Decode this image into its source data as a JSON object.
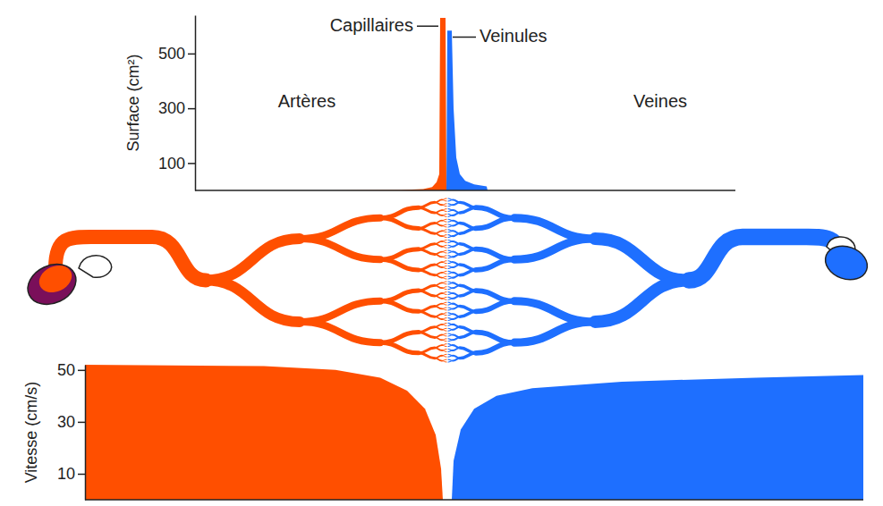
{
  "chart_data": [
    {
      "type": "area",
      "y_label": "Surface (cm²)",
      "xlim": [
        0,
        604
      ],
      "ylim": [
        0,
        640
      ],
      "yticks": [
        100,
        300,
        500
      ],
      "tick_labels": "y",
      "series": [
        {
          "color": "#ff4f00",
          "x": [
            0,
            150,
            230,
            255,
            265,
            270,
            273,
            274,
            280,
            281
          ],
          "values": [
            0,
            0,
            2,
            5,
            12,
            30,
            60,
            630,
            630,
            0
          ]
        },
        {
          "color": "#1e6fff",
          "x": [
            281,
            282,
            287,
            289,
            292,
            296,
            302,
            312,
            326,
            327
          ],
          "values": [
            0,
            584,
            584,
            300,
            120,
            60,
            35,
            22,
            15,
            0
          ]
        }
      ],
      "annotations": [
        {
          "text": "Artères",
          "x": 125,
          "y": 320
        },
        {
          "text": "Veines",
          "x": 520,
          "y": 320
        },
        {
          "text": "Capillaires",
          "x": 244,
          "y": 600,
          "target": {
            "x": 272,
            "y": 600
          }
        },
        {
          "text": "Veinules",
          "x": 318,
          "y": 560,
          "target": {
            "x": 288,
            "y": 560
          }
        }
      ]
    },
    {
      "type": "area",
      "y_label": "Vitesse (cm/s)",
      "xlim": [
        0,
        870
      ],
      "ylim": [
        0,
        52
      ],
      "yticks": [
        10,
        30,
        50
      ],
      "tick_labels": "y",
      "series": [
        {
          "color": "#ff4f00",
          "x": [
            0,
            200,
            280,
            330,
            360,
            380,
            392,
            398,
            400
          ],
          "values": [
            52,
            51.5,
            50,
            47,
            42,
            35,
            25,
            12,
            0
          ]
        },
        {
          "color": "#1e6fff",
          "x": [
            410,
            412,
            420,
            435,
            460,
            500,
            600,
            750,
            870
          ],
          "values": [
            0,
            15,
            27,
            35,
            40,
            43,
            45.5,
            47,
            48
          ]
        }
      ]
    }
  ]
}
